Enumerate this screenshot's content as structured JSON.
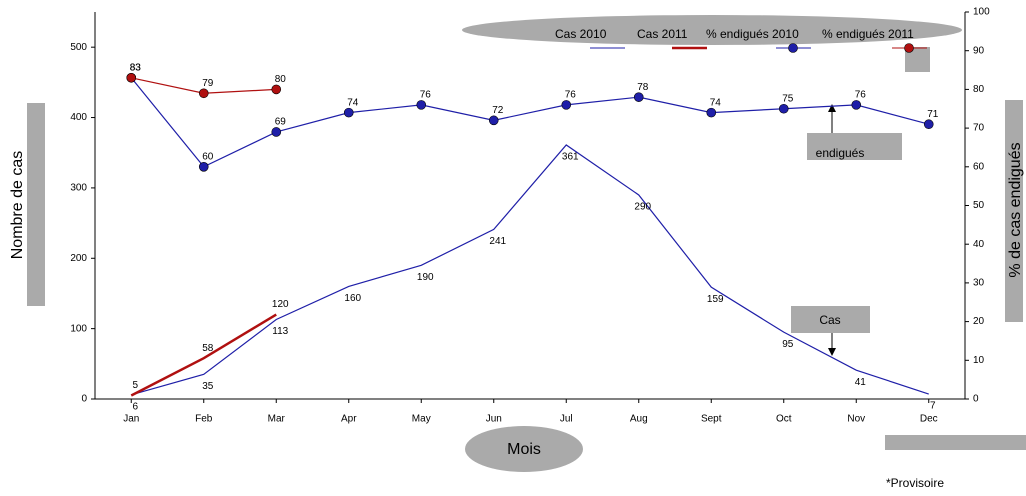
{
  "chart_data": {
    "type": "line",
    "categories": [
      "Jan",
      "Feb",
      "Mar",
      "Apr",
      "May",
      "Jun",
      "Jul",
      "Aug",
      "Sept",
      "Oct",
      "Nov",
      "Dec"
    ],
    "series": [
      {
        "name": "Cas 2010",
        "color": "#1f1fa8",
        "values": [
          6,
          35,
          113,
          160,
          190,
          241,
          361,
          290,
          159,
          95,
          41,
          7
        ]
      },
      {
        "name": "Cas 2011",
        "color": "#b01010",
        "values": [
          5,
          58,
          120,
          null,
          null,
          null,
          null,
          null,
          null,
          null,
          null,
          null
        ]
      },
      {
        "name": "% endigués 2010",
        "color": "#1f1fa8",
        "axis": "y2",
        "marker": true,
        "values": [
          83,
          60,
          69,
          74,
          76,
          72,
          76,
          78,
          74,
          75,
          76,
          71
        ]
      },
      {
        "name": "% endigués 2011",
        "color": "#b01010",
        "axis": "y2",
        "marker": true,
        "values": [
          83,
          79,
          80,
          null,
          null,
          null,
          null,
          null,
          null,
          null,
          null,
          null
        ]
      }
    ],
    "ylabel": "Nombre de cas",
    "y2label": "% de cas endigués",
    "xlabel": "Mois",
    "ylim": [
      0,
      550
    ],
    "yticks": [
      0,
      100,
      200,
      300,
      400,
      500
    ],
    "y2lim": [
      0,
      100
    ],
    "y2ticks": [
      0,
      10,
      20,
      30,
      40,
      50,
      60,
      70,
      80,
      90,
      100
    ],
    "annotations": [
      "endigués",
      "Cas",
      "*Provisoire"
    ]
  }
}
